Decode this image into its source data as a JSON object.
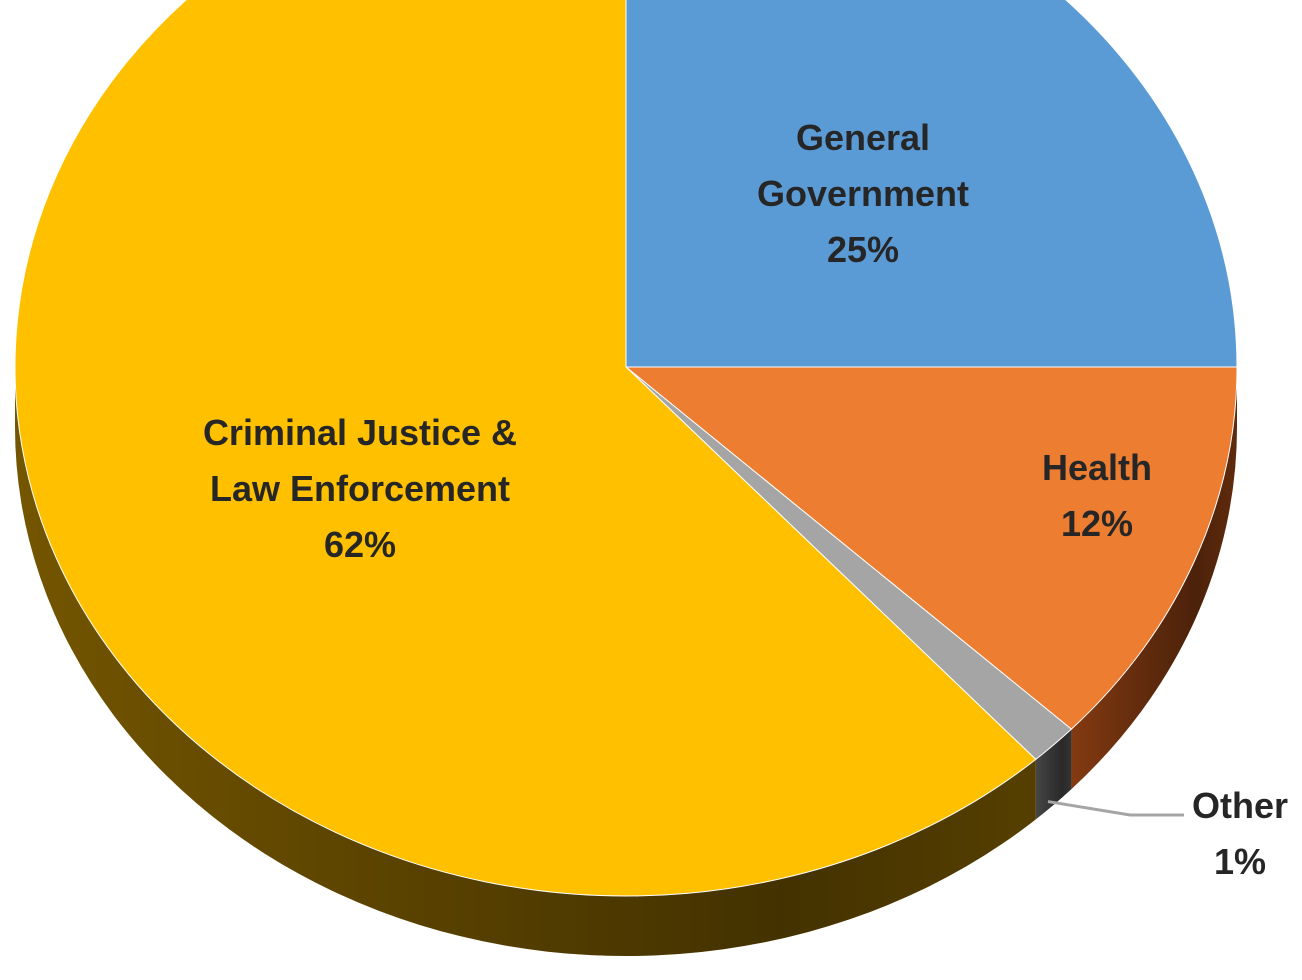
{
  "chart_data": {
    "type": "pie",
    "style": "3d",
    "start": "12 o'clock",
    "direction": "clockwise",
    "slices": [
      {
        "name": "General Government",
        "label_lines": [
          "General",
          "Government"
        ],
        "pct_label": "25%",
        "value": 25,
        "color": "#5B9BD5",
        "side_color": "#2E5A87"
      },
      {
        "name": "Health",
        "label_lines": [
          "Health"
        ],
        "pct_label": "12%",
        "value": 12,
        "color": "#ED7D31",
        "side_color": "#8A3D12"
      },
      {
        "name": "Other",
        "label_lines": [
          "Other"
        ],
        "pct_label": "1%",
        "value": 1.3,
        "color": "#A5A5A5",
        "side_color": "#4A4A4A"
      },
      {
        "name": "Criminal Justice & Law Enforcement",
        "label_lines": [
          "Criminal Justice &",
          "Law Enforcement"
        ],
        "pct_label": "62%",
        "value": 61.7,
        "color": "#FFC000",
        "side_color": "#7A5A00"
      }
    ]
  }
}
